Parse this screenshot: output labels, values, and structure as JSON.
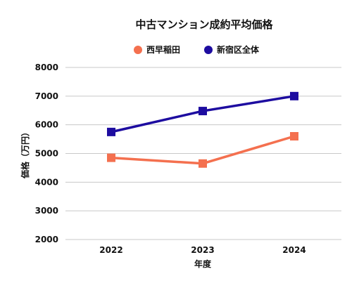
{
  "chart_data": {
    "type": "line",
    "title": "中古マンション成約平均価格",
    "xlabel": "年度",
    "ylabel": "価格（万円）",
    "categories": [
      "2022",
      "2023",
      "2024"
    ],
    "ylim": [
      2000,
      8000
    ],
    "yticks": [
      "2000",
      "3000",
      "4000",
      "5000",
      "6000",
      "7000",
      "8000"
    ],
    "grid": true,
    "legend_position": "top",
    "series": [
      {
        "name": "西早稲田",
        "color": "#f4704f",
        "values": [
          4850,
          4650,
          5600
        ]
      },
      {
        "name": "新宿区全体",
        "color": "#1d0ca0",
        "values": [
          5750,
          6480,
          7000
        ]
      }
    ]
  }
}
